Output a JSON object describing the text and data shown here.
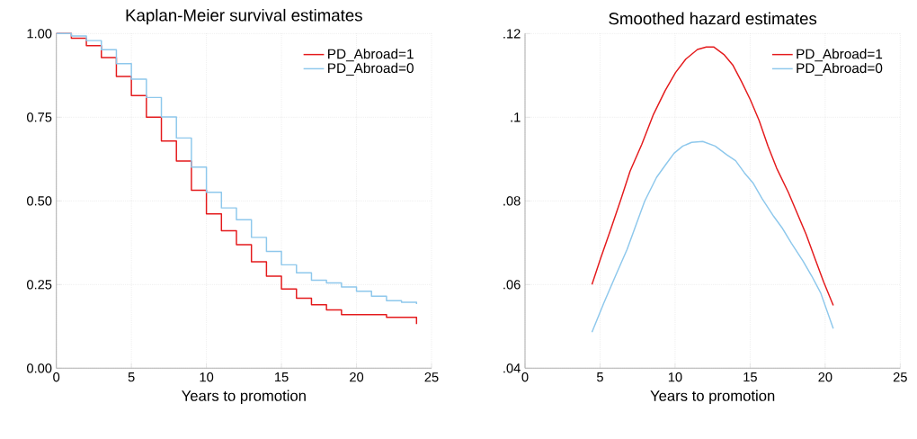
{
  "chart_data": [
    {
      "type": "step",
      "title": "Kaplan-Meier survival estimates",
      "xlabel": "Years to promotion",
      "xlim": [
        0,
        25
      ],
      "xticks": [
        0,
        5,
        10,
        15,
        20,
        25
      ],
      "ylim": [
        0,
        1
      ],
      "yticks": [
        {
          "value": 0,
          "label": "0.00"
        },
        {
          "value": 0.25,
          "label": "0.25"
        },
        {
          "value": 0.5,
          "label": "0.50"
        },
        {
          "value": 0.75,
          "label": "0.75"
        },
        {
          "value": 1,
          "label": "1.00"
        }
      ],
      "grid": true,
      "legend": "top right",
      "series": [
        {
          "name": "PD_Abroad=1",
          "color": "#e41a1c",
          "x": [
            0,
            1,
            2,
            3,
            4,
            5,
            6,
            7,
            8,
            9,
            10,
            11,
            12,
            13,
            14,
            15,
            16,
            17,
            18,
            19,
            22,
            24,
            24
          ],
          "values": [
            1.0,
            0.986,
            0.964,
            0.928,
            0.872,
            0.815,
            0.75,
            0.679,
            0.619,
            0.532,
            0.461,
            0.411,
            0.369,
            0.318,
            0.275,
            0.237,
            0.209,
            0.19,
            0.174,
            0.16,
            0.152,
            0.152,
            0.132
          ]
        },
        {
          "name": "PD_Abroad=0",
          "color": "#8ec8ec",
          "x": [
            0,
            1,
            2,
            3,
            4,
            5,
            6,
            7,
            8,
            9,
            10,
            11,
            12,
            13,
            14,
            15,
            16,
            17,
            18,
            19,
            20,
            21,
            22,
            23,
            24
          ],
          "values": [
            1.0,
            0.993,
            0.979,
            0.952,
            0.91,
            0.864,
            0.809,
            0.751,
            0.688,
            0.601,
            0.526,
            0.479,
            0.444,
            0.391,
            0.349,
            0.309,
            0.285,
            0.263,
            0.255,
            0.243,
            0.23,
            0.215,
            0.202,
            0.197,
            0.192
          ]
        }
      ]
    },
    {
      "type": "line",
      "title": "Smoothed hazard estimates",
      "xlabel": "Years to promotion",
      "xlim": [
        0,
        25
      ],
      "xticks": [
        0,
        5,
        10,
        15,
        20,
        25
      ],
      "ylim": [
        0.04,
        0.12
      ],
      "yticks": [
        {
          "value": 0.04,
          "label": ".04"
        },
        {
          "value": 0.06,
          "label": ".06"
        },
        {
          "value": 0.08,
          "label": ".08"
        },
        {
          "value": 0.1,
          "label": ".1"
        },
        {
          "value": 0.12,
          "label": ".12"
        }
      ],
      "grid": true,
      "legend": "top right",
      "series": [
        {
          "name": "PD_Abroad=1",
          "color": "#e41a1c",
          "x": [
            4.46,
            5.04,
            5.73,
            6.41,
            7.0,
            7.78,
            8.56,
            9.34,
            10.03,
            10.71,
            11.49,
            12.08,
            12.57,
            13.25,
            13.84,
            14.43,
            15.01,
            15.6,
            16.19,
            16.77,
            17.55,
            18.14,
            18.73,
            19.31,
            19.9,
            20.54
          ],
          "values": [
            0.06,
            0.0663,
            0.0734,
            0.0806,
            0.0871,
            0.0935,
            0.1007,
            0.1064,
            0.1107,
            0.1139,
            0.1162,
            0.1168,
            0.1168,
            0.115,
            0.1125,
            0.1085,
            0.1042,
            0.0992,
            0.0931,
            0.0878,
            0.082,
            0.077,
            0.072,
            0.0663,
            0.0606,
            0.055
          ]
        },
        {
          "name": "PD_Abroad=0",
          "color": "#8ec8ec",
          "x": [
            4.46,
            5.24,
            6.02,
            6.8,
            7.39,
            7.97,
            8.76,
            9.34,
            9.93,
            10.51,
            11.1,
            11.84,
            12.67,
            13.45,
            14.03,
            14.62,
            15.21,
            15.79,
            16.57,
            17.16,
            17.75,
            18.53,
            19.11,
            19.7,
            20.54
          ],
          "values": [
            0.0486,
            0.0555,
            0.062,
            0.0684,
            0.0742,
            0.0799,
            0.0856,
            0.0885,
            0.0914,
            0.0931,
            0.094,
            0.0942,
            0.0931,
            0.091,
            0.0896,
            0.0867,
            0.0842,
            0.0806,
            0.0763,
            0.0734,
            0.0699,
            0.0656,
            0.062,
            0.058,
            0.0495
          ]
        }
      ]
    }
  ]
}
